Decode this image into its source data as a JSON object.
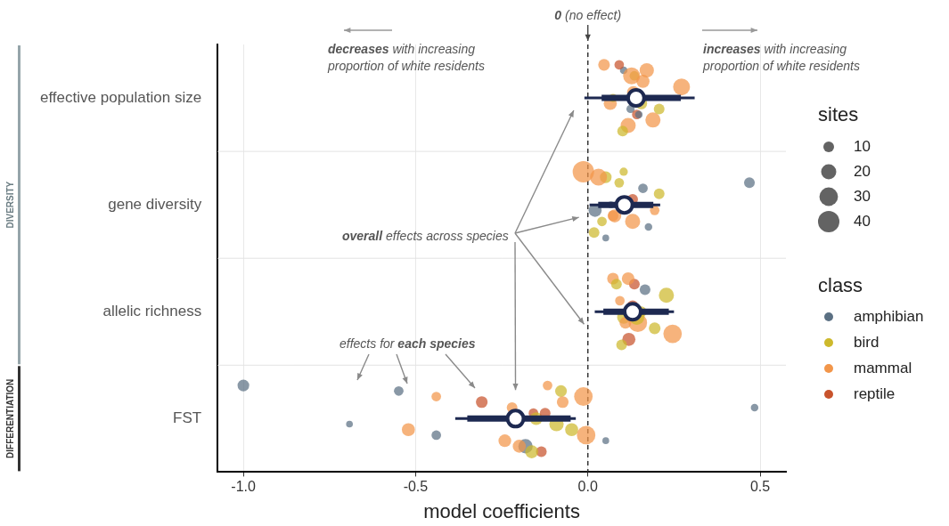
{
  "chart_data": {
    "type": "bubble",
    "x_label": "model coefficients",
    "categories": [
      "effective population size",
      "gene diversity",
      "allelic richness",
      "FST"
    ],
    "xlim": [
      -1.075,
      0.575
    ],
    "xticks": [
      {
        "value": -1,
        "label": "-1.0"
      },
      {
        "value": -0.5,
        "label": "-0.5"
      },
      {
        "value": 0,
        "label": "0.0"
      },
      {
        "value": 0.5,
        "label": "0.5"
      }
    ],
    "grid": true,
    "legend": "right",
    "reference_line": {
      "value": 0,
      "label": "0 (no effect)"
    },
    "annotations": {
      "decreases": [
        "decreases with increasing",
        "proportion of white residents"
      ],
      "increases": [
        "increases with increasing",
        "proportion of white residents"
      ],
      "overall": "overall effects across species",
      "species": "effects for each species"
    },
    "groups": [
      {
        "label": "DIVERSITY",
        "categories": [
          "effective population size",
          "gene diversity",
          "allelic richness"
        ]
      },
      {
        "label": "DIFFERENTIATION",
        "categories": [
          "FST"
        ]
      }
    ],
    "rows": [
      {
        "category": "effective population size",
        "estimate": 0.14,
        "interval_inner": [
          0.04,
          0.27
        ],
        "interval_outer": [
          -0.01,
          0.31
        ],
        "x": [
          0.047,
          0.065,
          0.104,
          0.124,
          0.135,
          0.142,
          0.16,
          0.189,
          0.272,
          0.117,
          0.132,
          0.101,
          0.073,
          0.091,
          0.155,
          0.171,
          0.207,
          0.127,
          0.148
        ],
        "sites": [
          12,
          15,
          5,
          6,
          8,
          8,
          15,
          20,
          25,
          20,
          14,
          10,
          6,
          8,
          12,
          18,
          10,
          25,
          5
        ],
        "class": [
          "mammal",
          "mammal",
          "amphibian",
          "amphibian",
          "bird",
          "reptile",
          "mammal",
          "mammal",
          "mammal",
          "mammal",
          "mammal",
          "bird",
          "bird",
          "reptile",
          "bird",
          "mammal",
          "bird",
          "mammal",
          "amphibian"
        ]
      },
      {
        "category": "gene diversity",
        "estimate": 0.106,
        "interval_inner": [
          0.03,
          0.19
        ],
        "interval_outer": [
          0.005,
          0.21
        ],
        "x": [
          -0.013,
          0.021,
          0.052,
          0.073,
          0.091,
          0.13,
          0.16,
          0.176,
          0.207,
          0.018,
          0.13,
          0.052,
          0.067,
          0.104,
          0.194,
          0.031,
          0.078,
          0.469,
          0.041
        ],
        "sites": [
          40,
          15,
          12,
          10,
          8,
          20,
          8,
          5,
          10,
          10,
          10,
          4,
          4,
          6,
          8,
          25,
          15,
          10,
          8
        ],
        "class": [
          "mammal",
          "amphibian",
          "bird",
          "mammal",
          "bird",
          "mammal",
          "amphibian",
          "amphibian",
          "bird",
          "bird",
          "reptile",
          "amphibian",
          "amphibian",
          "bird",
          "mammal",
          "mammal",
          "mammal",
          "amphibian",
          "bird"
        ]
      },
      {
        "category": "allelic richness",
        "estimate": 0.13,
        "interval_inner": [
          0.045,
          0.235
        ],
        "interval_outer": [
          0.02,
          0.25
        ],
        "x": [
          0.073,
          0.104,
          0.135,
          0.145,
          0.166,
          0.194,
          0.228,
          0.246,
          0.093,
          0.119,
          0.13,
          0.098,
          0.155,
          0.117,
          0.142,
          0.083,
          0.109
        ],
        "sites": [
          12,
          15,
          10,
          30,
          10,
          12,
          20,
          30,
          8,
          15,
          12,
          10,
          10,
          14,
          20,
          10,
          12
        ],
        "class": [
          "mammal",
          "bird",
          "reptile",
          "mammal",
          "amphibian",
          "bird",
          "bird",
          "mammal",
          "mammal",
          "reptile",
          "reptile",
          "bird",
          "bird",
          "mammal",
          "bird",
          "bird",
          "mammal"
        ]
      },
      {
        "category": "FST",
        "estimate": -0.21,
        "interval_inner": [
          -0.35,
          -0.05
        ],
        "interval_outer": [
          -0.385,
          -0.035
        ],
        "x": [
          -1.0,
          -0.692,
          -0.549,
          -0.521,
          -0.44,
          -0.44,
          -0.308,
          -0.241,
          -0.22,
          -0.181,
          -0.158,
          -0.135,
          -0.15,
          -0.117,
          -0.091,
          -0.078,
          -0.047,
          -0.013,
          -0.005,
          -0.073,
          0.052,
          0.484,
          -0.199,
          -0.124,
          -0.163
        ],
        "sites": [
          12,
          4,
          8,
          15,
          8,
          8,
          12,
          14,
          10,
          18,
          8,
          10,
          14,
          8,
          18,
          12,
          15,
          30,
          30,
          12,
          4,
          5,
          15,
          10,
          15
        ],
        "class": [
          "amphibian",
          "amphibian",
          "amphibian",
          "mammal",
          "mammal",
          "amphibian",
          "reptile",
          "mammal",
          "mammal",
          "amphibian",
          "reptile",
          "reptile",
          "bird",
          "mammal",
          "bird",
          "bird",
          "bird",
          "mammal",
          "mammal",
          "mammal",
          "amphibian",
          "amphibian",
          "mammal",
          "reptile",
          "bird"
        ]
      }
    ],
    "size_legend": {
      "title": "sites",
      "values": [
        10,
        20,
        30,
        40
      ]
    },
    "class_legend": {
      "title": "class",
      "classes": [
        {
          "name": "amphibian",
          "color": "#5b7083"
        },
        {
          "name": "bird",
          "color": "#cdb92c"
        },
        {
          "name": "mammal",
          "color": "#f2964a"
        },
        {
          "name": "reptile",
          "color": "#c8532c"
        }
      ]
    }
  }
}
